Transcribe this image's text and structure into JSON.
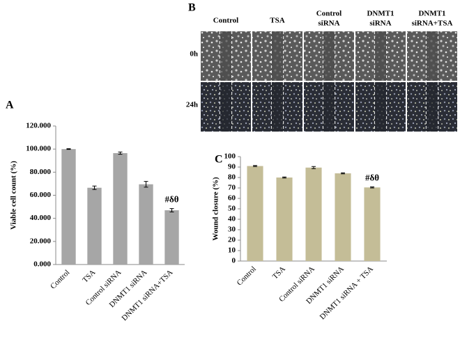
{
  "wound_images": {
    "panel_label": "B",
    "columns": [
      [
        "Control"
      ],
      [
        "TSA"
      ],
      [
        "Control",
        "siRNA"
      ],
      [
        "DNMT1",
        "siRNA"
      ],
      [
        "DNMT1",
        "siRNA+TSA"
      ]
    ],
    "rows": [
      "0h",
      "24h"
    ]
  },
  "chart_data": [
    {
      "type": "bar",
      "panel_label": "A",
      "y_label": "Viable cell count (%)",
      "categories": [
        "Control",
        "TSA",
        "Control siRNA",
        "DNMT1 siRNA",
        "DNMT1 siRNA+TSA"
      ],
      "values": [
        100,
        66.5,
        96.5,
        69.5,
        47
      ],
      "errors": [
        0.3,
        1.5,
        1,
        2.5,
        1.5
      ],
      "color": "#a6a6a6",
      "annotation": "#δθ",
      "ylim": [
        0,
        120
      ],
      "yticks": [
        {
          "value": 0,
          "label": "0.000"
        },
        {
          "value": 20,
          "label": "20.000"
        },
        {
          "value": 40,
          "label": "40.000"
        },
        {
          "value": 60,
          "label": "60.000"
        },
        {
          "value": 80,
          "label": "80.000"
        },
        {
          "value": 100,
          "label": "100.000"
        },
        {
          "value": 120,
          "label": "120.000"
        }
      ]
    },
    {
      "type": "bar",
      "panel_label": "C",
      "y_label": "Wound closure (%)",
      "categories": [
        "Control",
        "TSA",
        "Control siRNA",
        "DNMT1 siRNA",
        "DNMT1 siRNA + TSA"
      ],
      "values": [
        91,
        80,
        89.5,
        84,
        70.5
      ],
      "errors": [
        0.5,
        0.5,
        1,
        0.5,
        0.5
      ],
      "color": "#c4bd97",
      "annotation": "#δθ",
      "ylim": [
        0,
        100
      ],
      "yticks": [
        0,
        10,
        20,
        30,
        40,
        50,
        60,
        70,
        80,
        90,
        100
      ]
    }
  ]
}
